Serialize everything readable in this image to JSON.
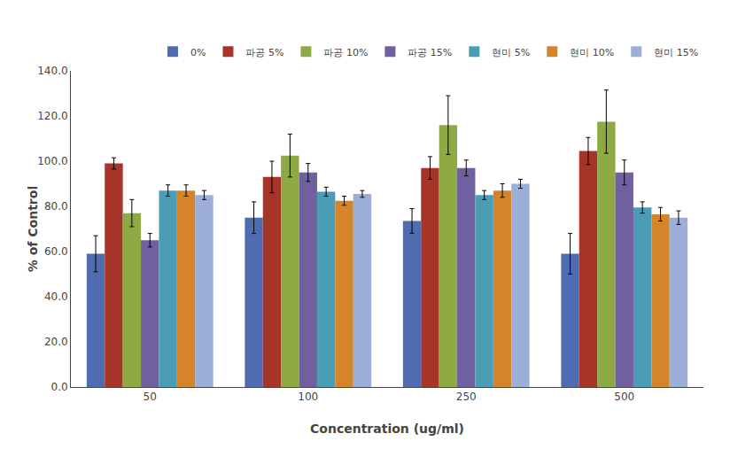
{
  "chart_data": {
    "type": "bar",
    "xlabel": "Concentration (ug/ml)",
    "ylabel": "% of Control",
    "categories": [
      "50",
      "100",
      "250",
      "500"
    ],
    "series": [
      {
        "name": "0%",
        "color": "#4F6CB0",
        "values": [
          59.0,
          75.0,
          73.5,
          59.0
        ],
        "errors": [
          8.0,
          7.0,
          5.5,
          9.0
        ]
      },
      {
        "name": "파공 5%",
        "color": "#A63428",
        "values": [
          99.0,
          93.0,
          97.0,
          104.5
        ],
        "errors": [
          2.5,
          7.0,
          5.0,
          6.0
        ]
      },
      {
        "name": "파공 10%",
        "color": "#8DAA45",
        "values": [
          77.0,
          102.5,
          116.0,
          117.5
        ],
        "errors": [
          6.0,
          9.5,
          13.0,
          14.0
        ]
      },
      {
        "name": "파공 15%",
        "color": "#7060A0",
        "values": [
          65.0,
          95.0,
          97.0,
          95.0
        ],
        "errors": [
          3.0,
          4.0,
          3.5,
          5.5
        ]
      },
      {
        "name": "현미 5%",
        "color": "#4A9DB5",
        "values": [
          87.0,
          86.5,
          85.0,
          79.5
        ],
        "errors": [
          2.5,
          2.0,
          2.0,
          2.5
        ]
      },
      {
        "name": "현미 10%",
        "color": "#D4852A",
        "values": [
          87.0,
          82.5,
          87.0,
          76.5
        ],
        "errors": [
          2.5,
          2.0,
          3.0,
          3.0
        ]
      },
      {
        "name": "현미 15%",
        "color": "#9DAED8",
        "values": [
          85.0,
          85.5,
          90.0,
          75.0
        ],
        "errors": [
          2.0,
          1.5,
          2.0,
          3.0
        ]
      }
    ],
    "ylim": [
      0.0,
      140.0
    ],
    "yticks": [
      {
        "value": 0,
        "label": "0.0"
      },
      {
        "value": 20,
        "label": "20.0"
      },
      {
        "value": 40,
        "label": "40.0"
      },
      {
        "value": 60,
        "label": "60.0"
      },
      {
        "value": 80,
        "label": "80.0"
      },
      {
        "value": 100,
        "label": "100.0"
      },
      {
        "value": 120,
        "label": "120.0"
      },
      {
        "value": 140,
        "label": "140.0"
      }
    ],
    "grid": false,
    "legend": "upper right"
  }
}
